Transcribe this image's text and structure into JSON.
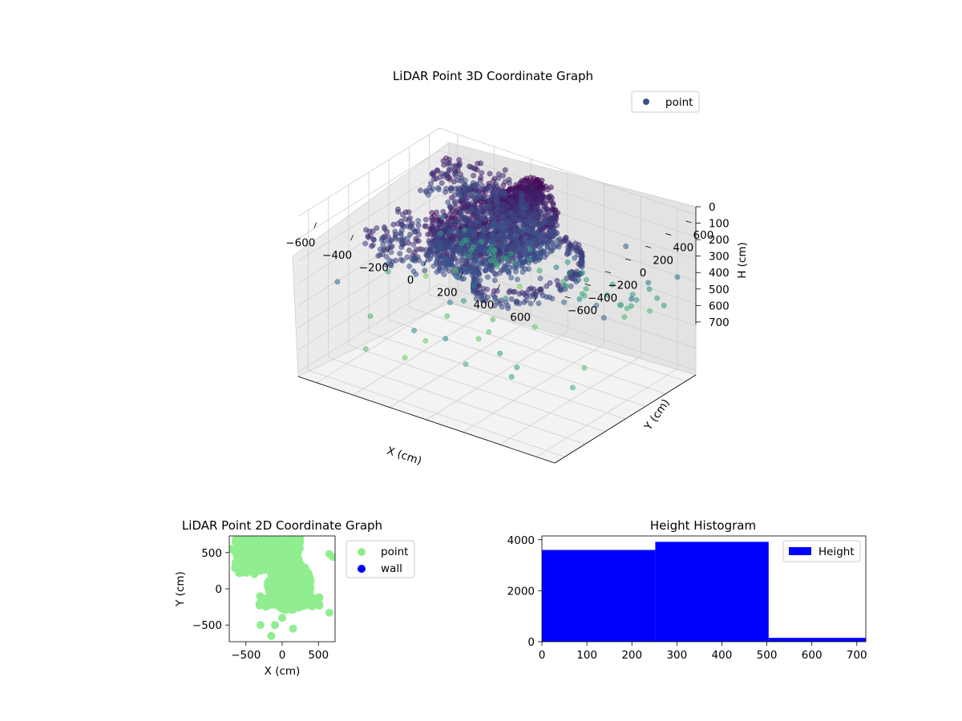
{
  "colors": {
    "point_2d": "#90ee90",
    "wall_2d": "#0000ff",
    "histogram": "#0000ff",
    "legend_marker_3d": "#3b528b",
    "colormap": "viridis"
  },
  "chart_data": [
    {
      "type": "scatter3d",
      "title": "LiDAR Point 3D Coordinate Graph",
      "xlabel": "X (cm)",
      "ylabel": "Y (cm)",
      "zlabel": "H (cm)",
      "xticks": [
        "−600",
        "−400",
        "−200",
        "0",
        "200",
        "400",
        "600"
      ],
      "yticks": [
        "−600",
        "−400",
        "−200",
        "0",
        "200",
        "400",
        "600"
      ],
      "zticks": [
        "0",
        "100",
        "200",
        "300",
        "400",
        "500",
        "600",
        "700"
      ],
      "xlim": [
        -700,
        700
      ],
      "ylim": [
        -700,
        700
      ],
      "zlim": [
        0,
        720
      ],
      "z_inverted": true,
      "grid": true,
      "legend": {
        "placement": "top-right",
        "entries": [
          "point"
        ]
      },
      "color_by": "height",
      "approximate_points": {
        "dense_cluster_low_height": {
          "x_range": [
            -150,
            300
          ],
          "y_range": [
            -500,
            600
          ],
          "h_range": [
            0,
            200
          ]
        },
        "upper_ring_green": {
          "h_range": [
            350,
            450
          ],
          "count_estimate": 45
        },
        "scattered_mid": {
          "h_range": [
            200,
            500
          ],
          "count_estimate": 40
        }
      }
    },
    {
      "type": "scatter",
      "title": "LiDAR Point 2D Coordinate Graph",
      "xlabel": "X (cm)",
      "ylabel": "Y (cm)",
      "xticks": [
        "−500",
        "0",
        "500"
      ],
      "yticks": [
        "−500",
        "0",
        "500"
      ],
      "xlim": [
        -730,
        730
      ],
      "ylim": [
        -730,
        730
      ],
      "legend": {
        "placement": "outside-right",
        "entries": [
          "point",
          "wall"
        ]
      },
      "series": [
        {
          "name": "point",
          "color": "#90ee90",
          "note_region": "dense blob covering most of the upper-left and center"
        },
        {
          "name": "wall",
          "color": "#0000ff",
          "values": []
        }
      ]
    },
    {
      "type": "bar",
      "title": "Height Histogram",
      "xlabel": "",
      "ylabel": "",
      "xticks": [
        "0",
        "100",
        "200",
        "300",
        "400",
        "500",
        "600",
        "700"
      ],
      "yticks": [
        "0",
        "2000",
        "4000"
      ],
      "xlim": [
        0,
        720
      ],
      "ylim": [
        0,
        4150
      ],
      "legend": {
        "placement": "top-right",
        "entries": [
          "Height"
        ]
      },
      "bins": [
        {
          "start": 0,
          "end": 252,
          "count": 3600
        },
        {
          "start": 252,
          "end": 504,
          "count": 3920
        },
        {
          "start": 504,
          "end": 720,
          "count": 150
        }
      ]
    }
  ]
}
